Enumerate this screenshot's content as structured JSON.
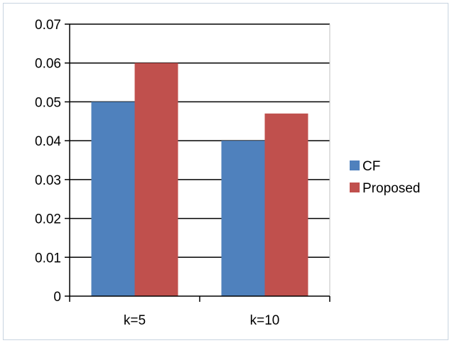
{
  "chart_data": {
    "type": "bar",
    "categories": [
      "k=5",
      "k=10"
    ],
    "series": [
      {
        "name": "CF",
        "values": [
          0.05,
          0.04
        ],
        "color": "#4f81bd"
      },
      {
        "name": "Proposed",
        "values": [
          0.06,
          0.047
        ],
        "color": "#c0504d"
      }
    ],
    "title": "",
    "xlabel": "",
    "ylabel": "",
    "ylim": [
      0,
      0.07
    ],
    "yticks": [
      "0",
      "0.01",
      "0.02",
      "0.03",
      "0.04",
      "0.05",
      "0.06",
      "0.07"
    ],
    "grid": "horizontal major gridlines",
    "legend_position": "right"
  }
}
